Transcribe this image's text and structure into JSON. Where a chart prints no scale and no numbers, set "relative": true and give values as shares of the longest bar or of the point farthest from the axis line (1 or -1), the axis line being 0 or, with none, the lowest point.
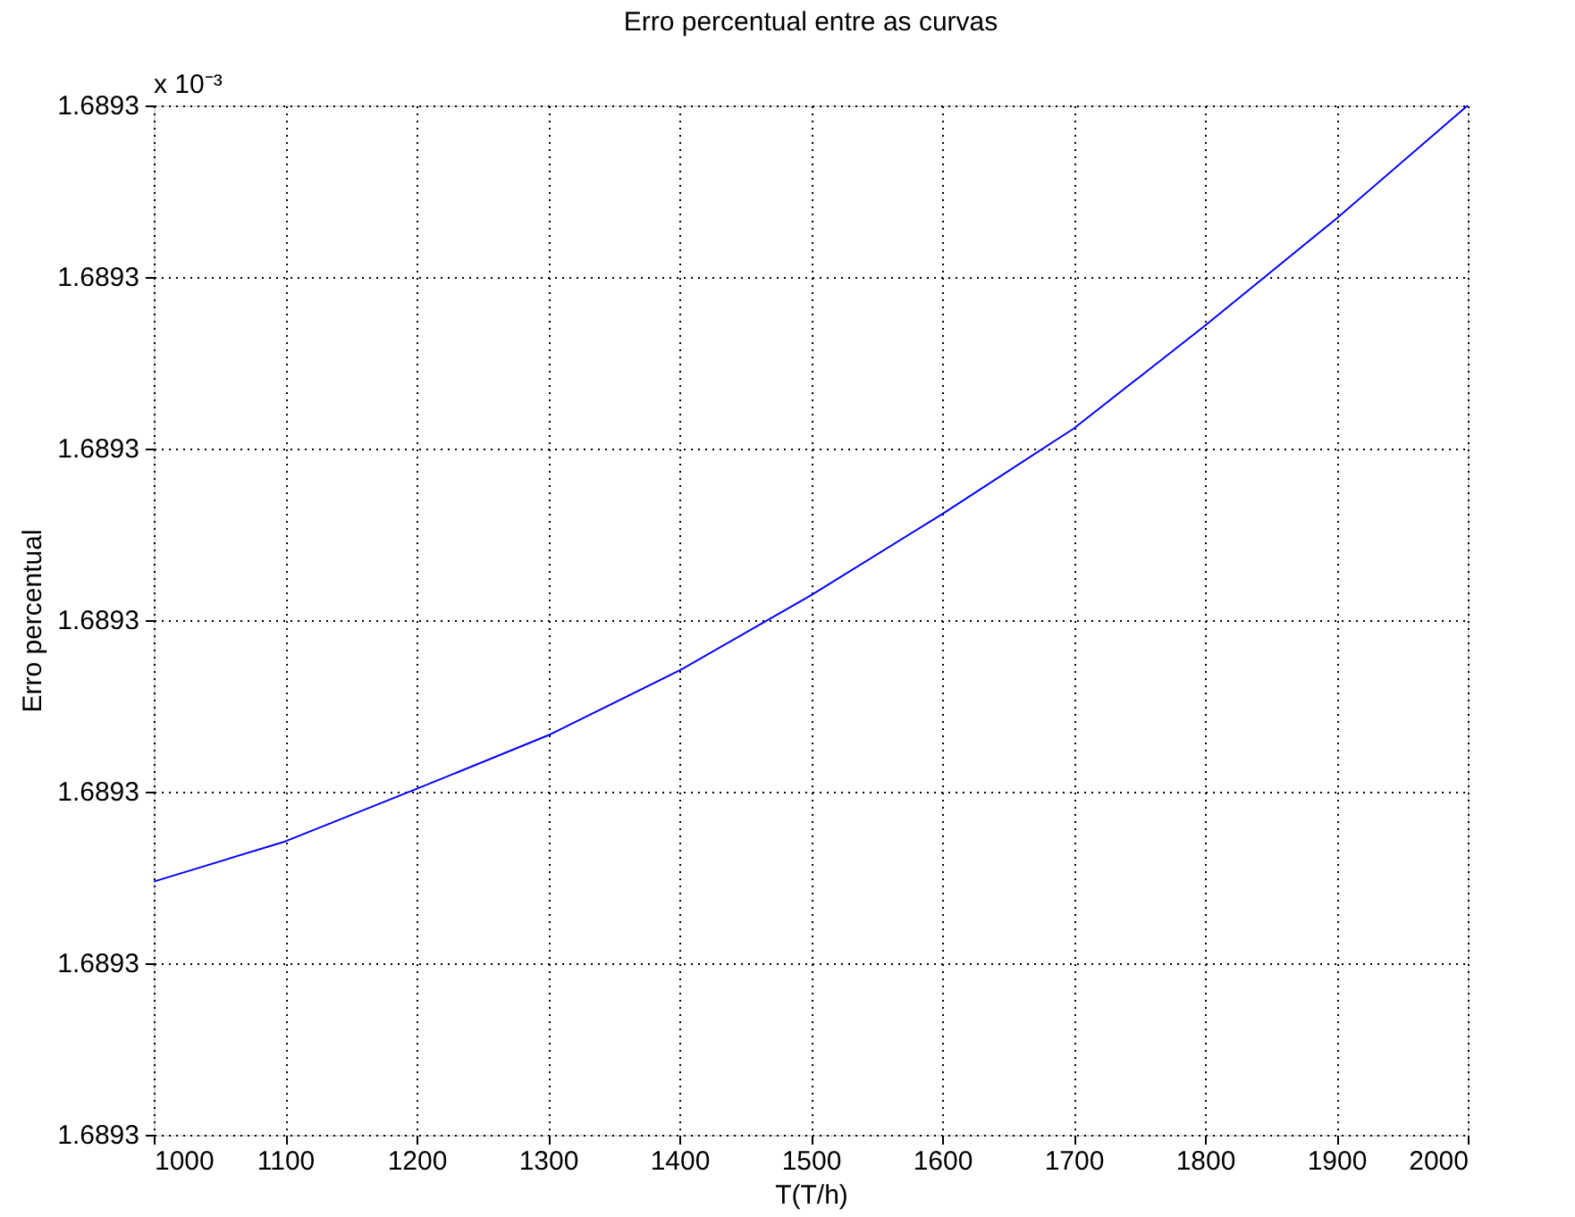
{
  "chart_data": {
    "type": "line",
    "title": "Erro percentual entre as curvas",
    "xlabel": "T(T/h)",
    "ylabel": "Erro percentual",
    "annotations": [
      "x 10⁻³",
      "1.6893",
      "1.6893",
      "1.6893",
      "1.6893",
      "1.6893",
      "1.6893",
      "1.6893"
    ],
    "relative": true,
    "x": [
      1000,
      1100,
      1200,
      1300,
      1400,
      1500,
      1600,
      1700,
      1800,
      1900,
      2000
    ],
    "series": [
      {
        "color": "#0000ff",
        "values": [
          0.246,
          0.285,
          0.336,
          0.388,
          0.451,
          0.524,
          0.603,
          0.686,
          0.786,
          0.89,
          1
        ]
      }
    ],
    "xlim": [
      1000,
      2000
    ],
    "xticks": [
      1000,
      1100,
      1200,
      1300,
      1400,
      1500,
      1600,
      1700,
      1800,
      1900,
      2000
    ],
    "grid": true,
    "marker": "none",
    "line_style": "solid"
  }
}
